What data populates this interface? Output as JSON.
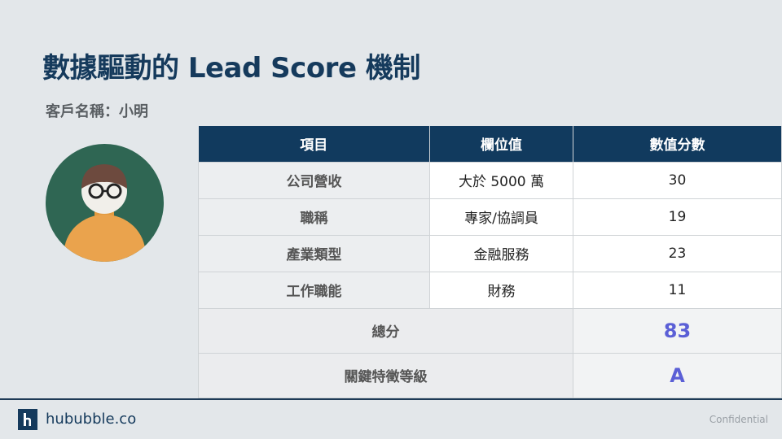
{
  "title": "數據驅動的 Lead Score 機制",
  "client_label": "客戶名稱：小明",
  "table": {
    "headers": [
      "項目",
      "欄位值",
      "數值分數"
    ],
    "rows": [
      {
        "item": "公司營收",
        "value": "大於 5000 萬",
        "score": "30"
      },
      {
        "item": "職稱",
        "value": "專家/協調員",
        "score": "19"
      },
      {
        "item": "產業類型",
        "value": "金融服務",
        "score": "23"
      },
      {
        "item": "工作職能",
        "value": "財務",
        "score": "11"
      }
    ],
    "total_label": "總分",
    "total_value": "83",
    "grade_label": "關鍵特徵等級",
    "grade_value": "A"
  },
  "footer": {
    "brand": "hububble.co",
    "confidential": "Confidential"
  },
  "colors": {
    "navy": "#113a5e",
    "accent": "#5b5fd6",
    "avatar_bg": "#2f6653",
    "shirt": "#e8a14a"
  }
}
